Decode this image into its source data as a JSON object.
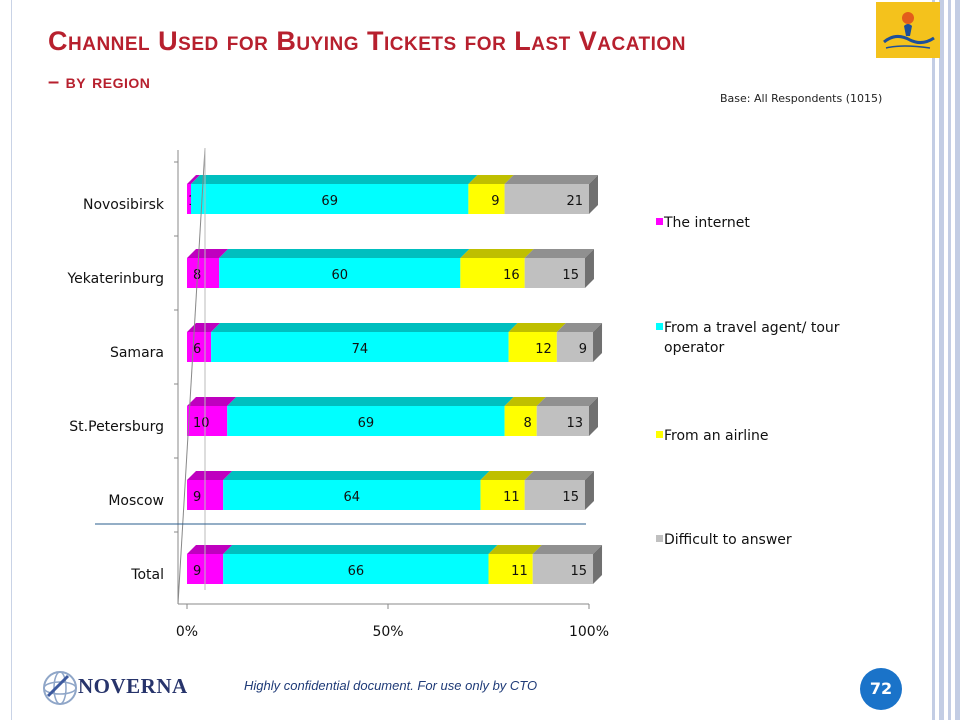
{
  "title_line1": "Channel Used for Buying Tickets for Last Vacation",
  "title_line2": "– by region",
  "base_note": "Base: All Respondents (1015)",
  "footer_note": "Highly confidential document. For use only by CTO",
  "page_number": "72",
  "brand": "NOVERNA",
  "logo_cyprus_icon": "cyprus-in-your-heart-logo",
  "chart_data": {
    "type": "bar",
    "orientation": "horizontal",
    "stacked": "percent",
    "categories": [
      "Novosibirsk",
      "Yekaterinburg",
      "Samara",
      "St.Petersburg",
      "Moscow",
      "Total"
    ],
    "series": [
      {
        "name": "The internet",
        "color": "#ff00ff",
        "values": [
          1,
          8,
          6,
          10,
          9,
          9
        ]
      },
      {
        "name": "From a travel agent/ tour operator",
        "color": "#00ffff",
        "values": [
          69,
          60,
          74,
          69,
          64,
          66
        ]
      },
      {
        "name": "From an airline",
        "color": "#ffff00",
        "values": [
          9,
          16,
          12,
          8,
          11,
          11
        ]
      },
      {
        "name": "Difficult to answer",
        "color": "#c0c0c0",
        "values": [
          21,
          15,
          9,
          13,
          15,
          15
        ]
      }
    ],
    "xticks": [
      "0%",
      "50%",
      "100%"
    ],
    "xlim": [
      0,
      100
    ],
    "legend": "right",
    "grid": false
  }
}
